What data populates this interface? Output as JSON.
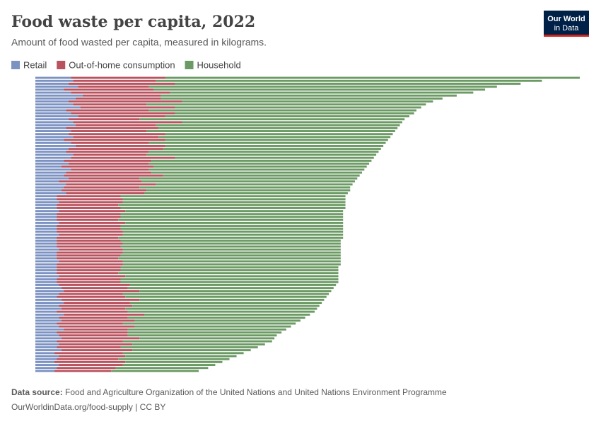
{
  "chart_data": {
    "type": "stacked-bar-horizontal",
    "title": "Food waste per capita, 2022",
    "subtitle": "Amount of food wasted per capita, measured in kilograms.",
    "logo": [
      "Our World",
      "in Data"
    ],
    "source_label": "Data source:",
    "source": "Food and Agriculture Organization of the United Nations and United Nations Environment Programme",
    "footer": "OurWorldinData.org/food-supply | CC BY",
    "xlim": [
      0,
      230
    ],
    "categories": [
      null,
      null,
      null,
      null,
      null,
      null,
      null,
      null,
      null,
      null,
      null,
      null,
      null,
      null,
      null,
      null,
      null,
      null,
      null,
      null,
      null,
      null,
      null,
      null,
      null,
      null,
      null,
      null,
      null,
      null,
      null,
      null,
      null,
      null,
      null,
      null,
      null,
      null,
      null,
      null,
      null,
      null,
      null,
      null,
      null,
      null,
      null,
      null,
      null,
      null,
      null,
      null,
      null,
      null,
      null,
      null,
      null,
      null,
      null,
      null,
      null,
      null,
      null,
      null,
      null,
      null,
      null,
      null,
      null,
      null,
      null,
      null,
      null,
      null,
      null,
      null,
      null,
      null,
      null,
      null,
      null,
      null,
      null,
      null,
      null,
      null,
      null,
      null,
      null,
      null,
      null,
      null,
      null,
      null,
      null,
      null,
      null,
      null,
      null,
      null
    ],
    "series": [
      {
        "name": "Retail",
        "color": "#7b92c2",
        "values": [
          15,
          16,
          14,
          18,
          12,
          15,
          20,
          17,
          14,
          16,
          19,
          13,
          15,
          18,
          14,
          16,
          17,
          13,
          15,
          14,
          16,
          12,
          15,
          17,
          14,
          13,
          16,
          15,
          12,
          14,
          11,
          15,
          13,
          12,
          14,
          10,
          13,
          12,
          11,
          13,
          9,
          9,
          10,
          9,
          9,
          10,
          9,
          9,
          9,
          10,
          9,
          9,
          9,
          10,
          9,
          9,
          9,
          9,
          10,
          9,
          9,
          9,
          10,
          9,
          9,
          9,
          9,
          10,
          9,
          9,
          10,
          11,
          12,
          10,
          9,
          11,
          12,
          10,
          11,
          9,
          12,
          10,
          11,
          9,
          10,
          12,
          9,
          10,
          11,
          9,
          10,
          9,
          11,
          8,
          10,
          9,
          8,
          10,
          9,
          8
        ]
      },
      {
        "name": "Out-of-home consumption",
        "color": "#b8535f",
        "values": [
          40,
          35,
          45,
          30,
          38,
          42,
          33,
          36,
          48,
          31,
          40,
          35,
          44,
          37,
          30,
          46,
          34,
          39,
          32,
          41,
          36,
          43,
          33,
          38,
          40,
          35,
          31,
          44,
          37,
          34,
          39,
          33,
          36,
          42,
          30,
          35,
          38,
          32,
          36,
          33,
          27,
          28,
          27,
          26,
          27,
          28,
          27,
          27,
          26,
          28,
          27,
          27,
          28,
          27,
          26,
          27,
          28,
          27,
          27,
          28,
          27,
          26,
          27,
          28,
          27,
          27,
          26,
          28,
          27,
          27,
          30,
          28,
          32,
          27,
          29,
          33,
          28,
          31,
          27,
          30,
          34,
          29,
          31,
          28,
          32,
          27,
          30,
          29,
          33,
          28,
          31,
          27,
          30,
          29,
          28,
          26,
          30,
          27,
          25,
          24
        ]
      },
      {
        "name": "Household",
        "color": "#6c9a64",
        "values": [
          175,
          163,
          146,
          147,
          140,
          128,
          125,
          119,
          106,
          118,
          104,
          113,
          101,
          103,
          112,
          93,
          103,
          101,
          105,
          96,
          98,
          94,
          100,
          92,
          92,
          97,
          97,
          84,
          93,
          93,
          90,
          91,
          89,
          83,
          92,
          90,
          83,
          89,
          86,
          86,
          95,
          94,
          94,
          96,
          95,
          92,
          94,
          94,
          95,
          92,
          94,
          94,
          93,
          93,
          95,
          93,
          92,
          93,
          92,
          92,
          93,
          94,
          92,
          92,
          92,
          92,
          93,
          90,
          92,
          92,
          87,
          87,
          81,
          87,
          85,
          78,
          81,
          79,
          81,
          79,
          70,
          75,
          70,
          73,
          66,
          67,
          65,
          63,
          57,
          63,
          56,
          58,
          50,
          51,
          47,
          47,
          41,
          39,
          39,
          37
        ]
      }
    ]
  }
}
